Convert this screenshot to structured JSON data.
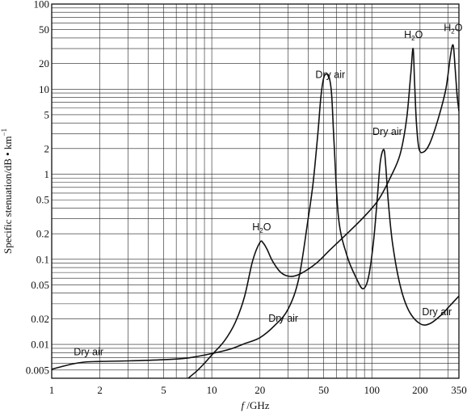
{
  "chart_data": {
    "type": "line",
    "title": "",
    "xlabel_italic": "f",
    "xlabel_rest": " /GHz",
    "ylabel": "Specific stenuation/dB • km",
    "ylabel_sup": "−1",
    "x_scale": "log",
    "y_scale": "log",
    "xlim": [
      1,
      350
    ],
    "ylim": [
      0.004,
      100
    ],
    "grid": true,
    "x_ticks": [
      1,
      2,
      5,
      10,
      20,
      50,
      100,
      200,
      350
    ],
    "x_tick_labels": [
      "1",
      "2",
      "5",
      "10",
      "20",
      "50",
      "100",
      "200",
      "350"
    ],
    "y_ticks": [
      0.005,
      0.01,
      0.02,
      0.05,
      0.1,
      0.2,
      0.5,
      1,
      2,
      5,
      10,
      20,
      50,
      100
    ],
    "y_tick_labels": [
      "0.005",
      "0.01",
      "0.02",
      "0.05",
      "0.1",
      "0.2",
      "0.5",
      "1",
      "2",
      "5",
      "10",
      "20",
      "50",
      "100"
    ],
    "series": [
      {
        "values": [
          [
            1,
            0.0051
          ],
          [
            1.3,
            0.0058
          ],
          [
            1.6,
            0.0062
          ],
          [
            2,
            0.0063
          ],
          [
            3,
            0.0064
          ],
          [
            5,
            0.0066
          ],
          [
            7,
            0.0069
          ],
          [
            10,
            0.0078
          ],
          [
            13,
            0.0088
          ],
          [
            16,
            0.0102
          ],
          [
            20,
            0.012
          ],
          [
            25,
            0.017
          ],
          [
            30,
            0.026
          ],
          [
            35,
            0.06
          ],
          [
            40,
            0.3
          ],
          [
            43,
            0.8
          ],
          [
            46,
            3
          ],
          [
            48,
            8
          ],
          [
            50,
            13.5
          ],
          [
            52,
            15
          ],
          [
            54,
            14
          ],
          [
            56,
            9
          ],
          [
            58,
            2.5
          ],
          [
            62,
            0.3
          ],
          [
            70,
            0.11
          ],
          [
            80,
            0.06
          ],
          [
            88,
            0.045
          ],
          [
            95,
            0.06
          ],
          [
            102,
            0.15
          ],
          [
            108,
            0.5
          ],
          [
            113,
            1.4
          ],
          [
            118.7,
            1.95
          ],
          [
            122,
            1.3
          ],
          [
            127,
            0.45
          ],
          [
            135,
            0.15
          ],
          [
            150,
            0.05
          ],
          [
            170,
            0.025
          ],
          [
            200,
            0.0175
          ],
          [
            230,
            0.0175
          ],
          [
            270,
            0.022
          ],
          [
            310,
            0.029
          ],
          [
            350,
            0.037
          ]
        ]
      },
      {
        "values": [
          [
            7,
            0.0039
          ],
          [
            8,
            0.0048
          ],
          [
            9,
            0.006
          ],
          [
            10,
            0.0075
          ],
          [
            12,
            0.011
          ],
          [
            14,
            0.018
          ],
          [
            16,
            0.036
          ],
          [
            18,
            0.096
          ],
          [
            20,
            0.158
          ],
          [
            21,
            0.155
          ],
          [
            22.2,
            0.13
          ],
          [
            24,
            0.095
          ],
          [
            27,
            0.07
          ],
          [
            31,
            0.063
          ],
          [
            36,
            0.068
          ],
          [
            45,
            0.09
          ],
          [
            55,
            0.13
          ],
          [
            70,
            0.2
          ],
          [
            90,
            0.32
          ],
          [
            110,
            0.5
          ],
          [
            130,
            0.9
          ],
          [
            150,
            1.7
          ],
          [
            165,
            4.5
          ],
          [
            175,
            15
          ],
          [
            181,
            30
          ],
          [
            185,
            12
          ],
          [
            190,
            4
          ],
          [
            197,
            2.0
          ],
          [
            210,
            1.82
          ],
          [
            230,
            2.3
          ],
          [
            260,
            4.5
          ],
          [
            290,
            10
          ],
          [
            310,
            25
          ],
          [
            322,
            33
          ],
          [
            330,
            20
          ],
          [
            340,
            9
          ],
          [
            350,
            5.5
          ]
        ]
      }
    ],
    "annotations": [
      {
        "text": "Dry air",
        "x": 1.7,
        "y": 0.0075
      },
      {
        "text": "Dry air",
        "x": 28,
        "y": 0.0185
      },
      {
        "text": "Dry air",
        "x": 55,
        "y": 13.5
      },
      {
        "text": "Dry air",
        "x": 125,
        "y": 2.9
      },
      {
        "text": "Dry air",
        "x": 255,
        "y": 0.022
      },
      {
        "text": "H",
        "sub": "2",
        "after": "O",
        "x": 20.5,
        "y": 0.22
      },
      {
        "text": "H",
        "sub": "2",
        "after": "O",
        "x": 182,
        "y": 40
      },
      {
        "text": "H",
        "sub": "2",
        "after": "O",
        "x": 322,
        "y": 48
      }
    ]
  }
}
